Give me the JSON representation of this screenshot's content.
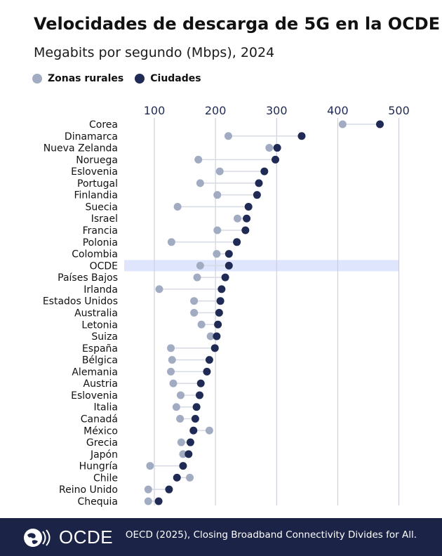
{
  "header": {
    "title": "Velocidades de descarga de 5G en la OCDE",
    "subtitle": "Megabits por segundo (Mbps), 2024"
  },
  "legend": {
    "rural_label": "Zonas rurales",
    "city_label": "Ciudades"
  },
  "colors": {
    "rural": "#a1acc3",
    "city": "#1f2a55",
    "highlight": "#dfe5fc",
    "gridline": "#c5cad6",
    "connector": "#d6dae3",
    "footer_bg": "#1b2446"
  },
  "footer": {
    "logo_text": "OCDE",
    "source": "OECD (2025), Closing Broadband Connectivity Divides for All."
  },
  "chart_data": {
    "type": "dot",
    "orientation": "horizontal",
    "x_ticks": [
      100,
      200,
      300,
      400,
      500
    ],
    "xlim": [
      50,
      500
    ],
    "highlight": "OCDE",
    "categories": [
      "Corea",
      "Dinamarca",
      "Nueva Zelanda",
      "Noruega",
      "Eslovenia",
      "Portugal",
      "Finlandia",
      "Suecia",
      "Israel",
      "Francia",
      "Polonia",
      "Colombia",
      "OCDE",
      "Países Bajos",
      "Irlanda",
      "Estados Unidos",
      "Australia",
      "Letonia",
      "Suiza",
      "España",
      "Bélgica",
      "Alemania",
      "Austria",
      "Eslovenia",
      "Italia",
      "Canadá",
      "México",
      "Grecia",
      "Japón",
      "Hungría",
      "Chile",
      "Reino Unido",
      "Chequia"
    ],
    "series": [
      {
        "name": "Zonas rurales",
        "values": [
          408,
          221,
          288,
          172,
          207,
          175,
          203,
          138,
          236,
          203,
          128,
          202,
          175,
          170,
          108,
          165,
          165,
          177,
          192,
          127,
          129,
          127,
          131,
          143,
          136,
          142,
          190,
          144,
          147,
          93,
          158,
          90,
          90
        ]
      },
      {
        "name": "Ciudades",
        "values": [
          469,
          341,
          301,
          298,
          280,
          271,
          268,
          254,
          251,
          249,
          235,
          222,
          222,
          216,
          210,
          208,
          206,
          204,
          202,
          199,
          190,
          186,
          176,
          174,
          169,
          167,
          164,
          159,
          156,
          147,
          137,
          124,
          107
        ]
      }
    ]
  }
}
